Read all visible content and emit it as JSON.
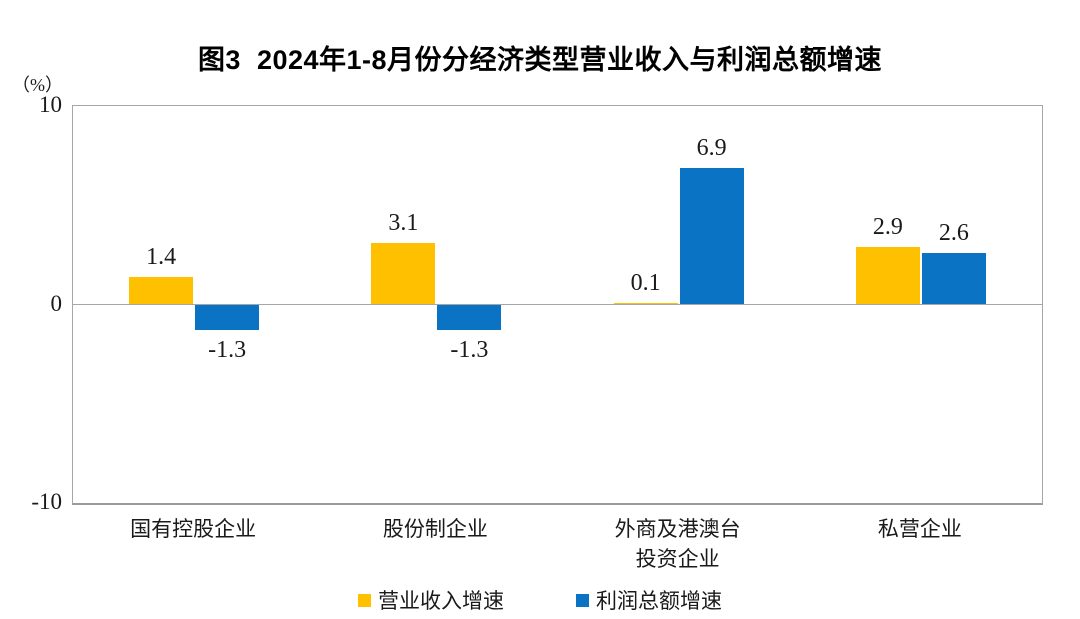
{
  "title": "图3  2024年1-8月份分经济类型营业收入与利润总额增速",
  "y_axis": {
    "unit_label": "（%）",
    "ticks": [
      "10",
      "0",
      "-10"
    ]
  },
  "chart_data": {
    "type": "bar",
    "title": "图3  2024年1-8月份分经济类型营业收入与利润总额增速",
    "categories": [
      "国有控股企业",
      "股份制企业",
      "外商及港澳台\n投资企业",
      "私营企业"
    ],
    "series": [
      {
        "name": "营业收入增速",
        "color": "#FFC000",
        "values": [
          1.4,
          3.1,
          0.1,
          2.9
        ]
      },
      {
        "name": "利润总额增速",
        "color": "#0A73C4",
        "values": [
          -1.3,
          -1.3,
          6.9,
          2.6
        ]
      }
    ],
    "xlabel": "",
    "ylabel": "（%）",
    "ylim": [
      -10,
      10
    ],
    "yticks": [
      10,
      0,
      -10
    ],
    "grid": "zero-line-only",
    "legend_position": "bottom",
    "value_labels": true,
    "value_label_format": "one-decimal"
  }
}
